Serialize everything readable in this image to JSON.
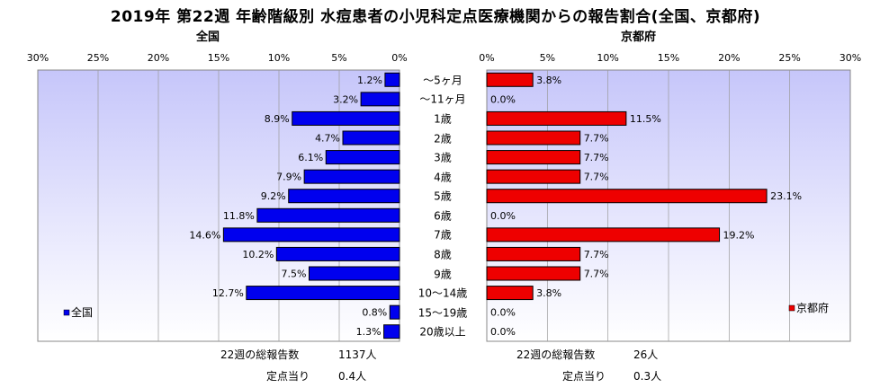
{
  "title": "2019年 第22週 年齢階級別 水痘患者の小児科定点医療機関からの報告割合(全国、京都府)",
  "chart_data": [
    {
      "type": "bar",
      "title": "全国",
      "legend": "全国",
      "legend_position": "bottom-left",
      "orientation": "horizontal-reversed",
      "color": "#0000ee",
      "xlim": [
        0,
        30
      ],
      "ticks": [
        "30%",
        "25%",
        "20%",
        "15%",
        "10%",
        "5%",
        "0%"
      ],
      "categories": [
        "～5ヶ月",
        "～11ヶ月",
        "1歳",
        "2歳",
        "3歳",
        "4歳",
        "5歳",
        "6歳",
        "7歳",
        "8歳",
        "9歳",
        "10～14歳",
        "15～19歳",
        "20歳以上"
      ],
      "values": [
        1.2,
        3.2,
        8.9,
        4.7,
        6.1,
        7.9,
        9.2,
        11.8,
        14.6,
        10.2,
        7.5,
        12.7,
        0.8,
        1.3
      ],
      "labels": [
        "1.2%",
        "3.2%",
        "8.9%",
        "4.7%",
        "6.1%",
        "7.9%",
        "9.2%",
        "11.8%",
        "14.6%",
        "10.2%",
        "7.5%",
        "12.7%",
        "0.8%",
        "1.3%"
      ],
      "grid": true
    },
    {
      "type": "bar",
      "title": "京都府",
      "legend": "京都府",
      "legend_position": "bottom-right",
      "orientation": "horizontal",
      "color": "#ee0000",
      "xlim": [
        0,
        30
      ],
      "ticks": [
        "0%",
        "5%",
        "10%",
        "15%",
        "20%",
        "25%",
        "30%"
      ],
      "categories": [
        "～5ヶ月",
        "～11ヶ月",
        "1歳",
        "2歳",
        "3歳",
        "4歳",
        "5歳",
        "6歳",
        "7歳",
        "8歳",
        "9歳",
        "10～14歳",
        "15～19歳",
        "20歳以上"
      ],
      "values": [
        3.8,
        0.0,
        11.5,
        7.7,
        7.7,
        7.7,
        23.1,
        0.0,
        19.2,
        7.7,
        7.7,
        3.8,
        0.0,
        0.0
      ],
      "labels": [
        "3.8%",
        "0.0%",
        "11.5%",
        "7.7%",
        "7.7%",
        "7.7%",
        "23.1%",
        "0.0%",
        "19.2%",
        "7.7%",
        "7.7%",
        "3.8%",
        "0.0%",
        "0.0%"
      ],
      "grid": true
    }
  ],
  "footer": {
    "national_total_label": "22週の総報告数",
    "national_total_value": "1137人",
    "national_per_label": "定点当り",
    "national_per_value": "0.4人",
    "kyoto_total_label": "22週の総報告数",
    "kyoto_total_value": "26人",
    "kyoto_per_label": "定点当り",
    "kyoto_per_value": "0.3人"
  }
}
